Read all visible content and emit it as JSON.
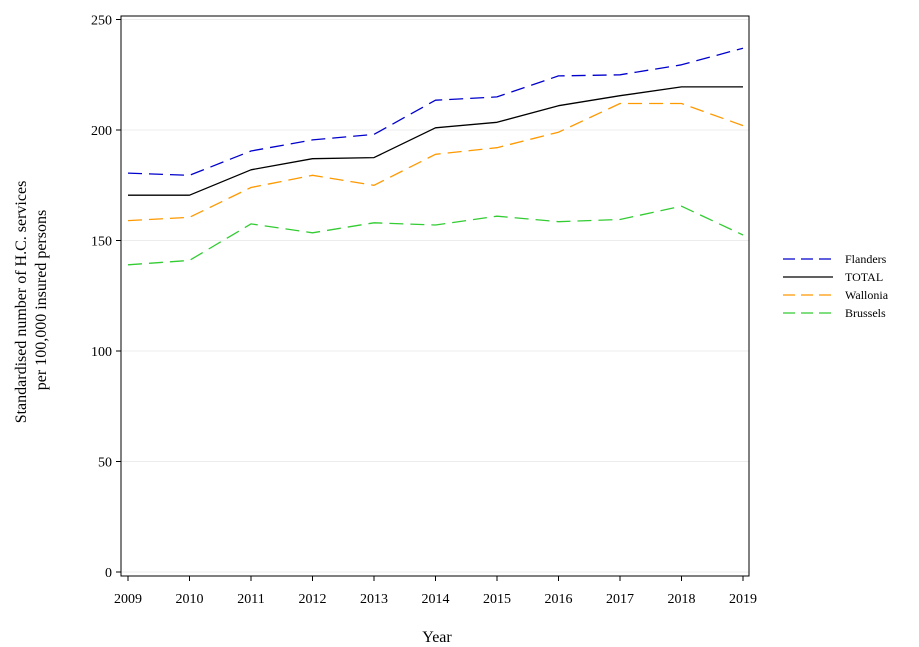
{
  "chart_data": {
    "type": "line",
    "title": "",
    "xlabel": "Year",
    "ylabel_lines": [
      "Standardised number of H.C. services",
      "per 100,000 insured persons"
    ],
    "x": [
      2009,
      2010,
      2011,
      2012,
      2013,
      2014,
      2015,
      2016,
      2017,
      2018,
      2019
    ],
    "xticks": [
      "2009",
      "2010",
      "2011",
      "2012",
      "2013",
      "2014",
      "2015",
      "2016",
      "2017",
      "2018",
      "2019"
    ],
    "yticks": [
      0,
      50,
      100,
      150,
      200,
      250
    ],
    "ylim": [
      0,
      250
    ],
    "grid": true,
    "legend_position": "right",
    "series": [
      {
        "name": "Flanders",
        "color": "#0000cc",
        "dash": "dashed",
        "values": [
          180.5,
          179.5,
          190.5,
          195.5,
          198,
          213.5,
          215,
          224.5,
          225,
          229.5,
          237
        ]
      },
      {
        "name": "TOTAL",
        "color": "#000000",
        "dash": "solid",
        "values": [
          170.5,
          170.5,
          182,
          187,
          187.5,
          201,
          203.5,
          211,
          215.5,
          219.5,
          219.5
        ]
      },
      {
        "name": "Wallonia",
        "color": "#ff9900",
        "dash": "dashed",
        "values": [
          159,
          160.5,
          174,
          179.5,
          175,
          189,
          192,
          199,
          212,
          212,
          202
        ]
      },
      {
        "name": "Brussels",
        "color": "#33cc33",
        "dash": "dashed",
        "values": [
          139,
          141,
          157.5,
          153.5,
          158,
          157,
          161,
          158.5,
          159.5,
          165.5,
          152.5
        ]
      }
    ]
  }
}
